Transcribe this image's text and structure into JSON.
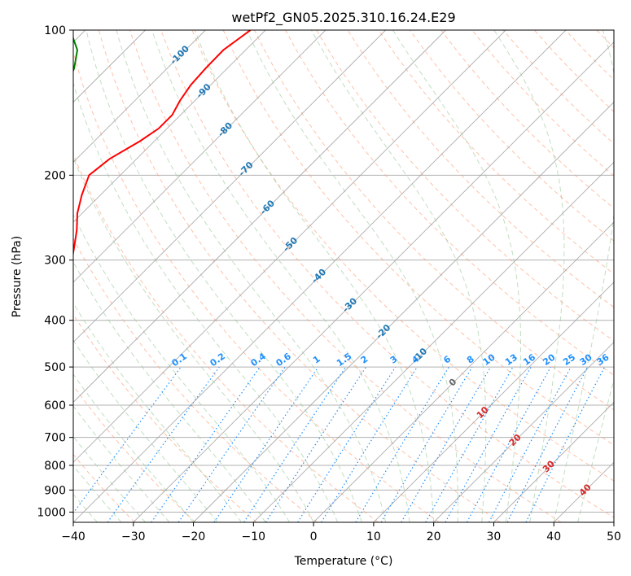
{
  "chart_data": {
    "type": "skew-t",
    "title": "wetPf2_GN05.2025.310.16.24.E29",
    "xlabel": "Temperature (°C)",
    "ylabel": "Pressure (hPa)",
    "xlim": [
      -40,
      50
    ],
    "ylim": [
      1050,
      100
    ],
    "x_ticks": [
      "−40",
      "−30",
      "−20",
      "−10",
      "0",
      "10",
      "20",
      "30",
      "40",
      "50"
    ],
    "x_tick_values": [
      -40,
      -30,
      -20,
      -10,
      0,
      10,
      20,
      30,
      40,
      50
    ],
    "y_ticks": [
      "100",
      "200",
      "300",
      "400",
      "500",
      "600",
      "700",
      "800",
      "900",
      "1000"
    ],
    "y_tick_values": [
      100,
      200,
      300,
      400,
      500,
      600,
      700,
      800,
      900,
      1000
    ],
    "isotherm_labels": [
      {
        "text": "-100",
        "p": 112,
        "t": -100
      },
      {
        "text": "-90",
        "p": 133,
        "t": -90
      },
      {
        "text": "-80",
        "p": 160,
        "t": -80
      },
      {
        "text": "-70",
        "p": 193,
        "t": -70
      },
      {
        "text": "-60",
        "p": 232,
        "t": -60
      },
      {
        "text": "-50",
        "p": 277,
        "t": -50
      },
      {
        "text": "-40",
        "p": 322,
        "t": -40
      },
      {
        "text": "-30",
        "p": 370,
        "t": -30
      },
      {
        "text": "-20",
        "p": 420,
        "t": -20
      },
      {
        "text": "-10",
        "p": 470,
        "t": -10
      },
      {
        "text": "0",
        "p": 535,
        "t": 0
      },
      {
        "text": "10",
        "p": 618,
        "t": 10
      },
      {
        "text": "20",
        "p": 705,
        "t": 20
      },
      {
        "text": "30",
        "p": 800,
        "t": 30
      },
      {
        "text": "40",
        "p": 895,
        "t": 40
      }
    ],
    "mixing_ratio_labels": [
      "0.1",
      "0.2",
      "0.4",
      "0.6",
      "1",
      "1.5",
      "2",
      "3",
      "4",
      "6",
      "8",
      "10",
      "13",
      "16",
      "20",
      "25",
      "30",
      "36"
    ],
    "mixing_ratio_values": [
      0.1,
      0.2,
      0.4,
      0.6,
      1,
      1.5,
      2,
      3,
      4,
      6,
      8,
      10,
      13,
      16,
      20,
      25,
      30,
      36
    ],
    "series": [
      {
        "name": "Temperature",
        "color": "#ff0000",
        "p": [
          850,
          840,
          830,
          815,
          790,
          760,
          740,
          720,
          700,
          680,
          650,
          620,
          600,
          570,
          540,
          510,
          480,
          450,
          430,
          410,
          400,
          380,
          360,
          340,
          320,
          300,
          280,
          260,
          240,
          220,
          200,
          185,
          170,
          160,
          150,
          140,
          130,
          120,
          110,
          100
        ],
        "t": [
          -68.5,
          -68.4,
          -68.2,
          -67.5,
          -66.9,
          -66.1,
          -65.2,
          -64.6,
          -64.1,
          -63.6,
          -63.9,
          -64.2,
          -64.6,
          -66.0,
          -68.2,
          -70.8,
          -73.2,
          -75.5,
          -78.0,
          -79.6,
          -80.6,
          -81.0,
          -81.6,
          -82.2,
          -83.0,
          -83.9,
          -85.9,
          -88.1,
          -90.8,
          -93.1,
          -95.2,
          -94.5,
          -92.4,
          -91.4,
          -91.4,
          -92.5,
          -93.3,
          -93.6,
          -93.7,
          -92.5
        ]
      },
      {
        "name": "Dewpoint",
        "color": "#008000",
        "p": [
          850,
          845,
          835,
          825,
          815,
          805,
          795,
          780,
          770,
          760,
          745,
          735,
          725,
          715,
          700,
          690,
          680,
          670,
          660,
          650,
          640,
          630,
          615,
          600,
          590,
          575,
          560,
          545,
          530,
          520,
          510,
          500,
          480,
          470,
          460,
          440,
          430,
          420,
          410,
          400,
          395,
          390,
          380,
          370,
          360,
          350,
          340,
          330,
          320,
          310,
          300,
          290,
          280,
          270,
          260,
          250,
          240,
          230,
          220,
          210,
          200,
          190,
          180,
          175,
          170,
          165,
          160,
          150,
          140,
          130,
          120,
          110,
          100
        ],
        "t": [
          -86.5,
          -87.2,
          -88.9,
          -91.3,
          -94.2,
          -96.4,
          -98.3,
          -98.7,
          -98.8,
          -99.0,
          -101.4,
          -105.4,
          -108.7,
          -111.5,
          -112.0,
          -111.0,
          -112.6,
          -110.1,
          -111.7,
          -113.8,
          -113.5,
          -110.6,
          -106.7,
          -103.2,
          -103.3,
          -104.5,
          -106.2,
          -107.7,
          -108.6,
          -108.6,
          -108.4,
          -106.9,
          -102.1,
          -101.9,
          -99.7,
          -100.3,
          -99.2,
          -99.1,
          -100.3,
          -100.4,
          -99.3,
          -96.8,
          -94.3,
          -93.1,
          -93.0,
          -93.1,
          -93.5,
          -94.8,
          -95.7,
          -95.9,
          -96.3,
          -96.5,
          -96.9,
          -98.0,
          -99.7,
          -100.8,
          -102.1,
          -103.2,
          -103.9,
          -105.2,
          -106.4,
          -106.6,
          -107.9,
          -109.1,
          -110.3,
          -111.1,
          -111.6,
          -111.9,
          -112.7,
          -113.8,
          -115.5,
          -118.0,
          -122.5
        ]
      }
    ]
  },
  "colors": {
    "temperature": "#ff0000",
    "dewpoint": "#008000",
    "isotherm": "#999999",
    "dry_adiabat": "#ffa07a",
    "moist_adiabat": "#98c898",
    "mixing_ratio": "#1e90ff",
    "isotherm_label_cold": "#1f77b4",
    "isotherm_label_warm": "#d62728",
    "isotherm_label_zero": "#666666"
  }
}
